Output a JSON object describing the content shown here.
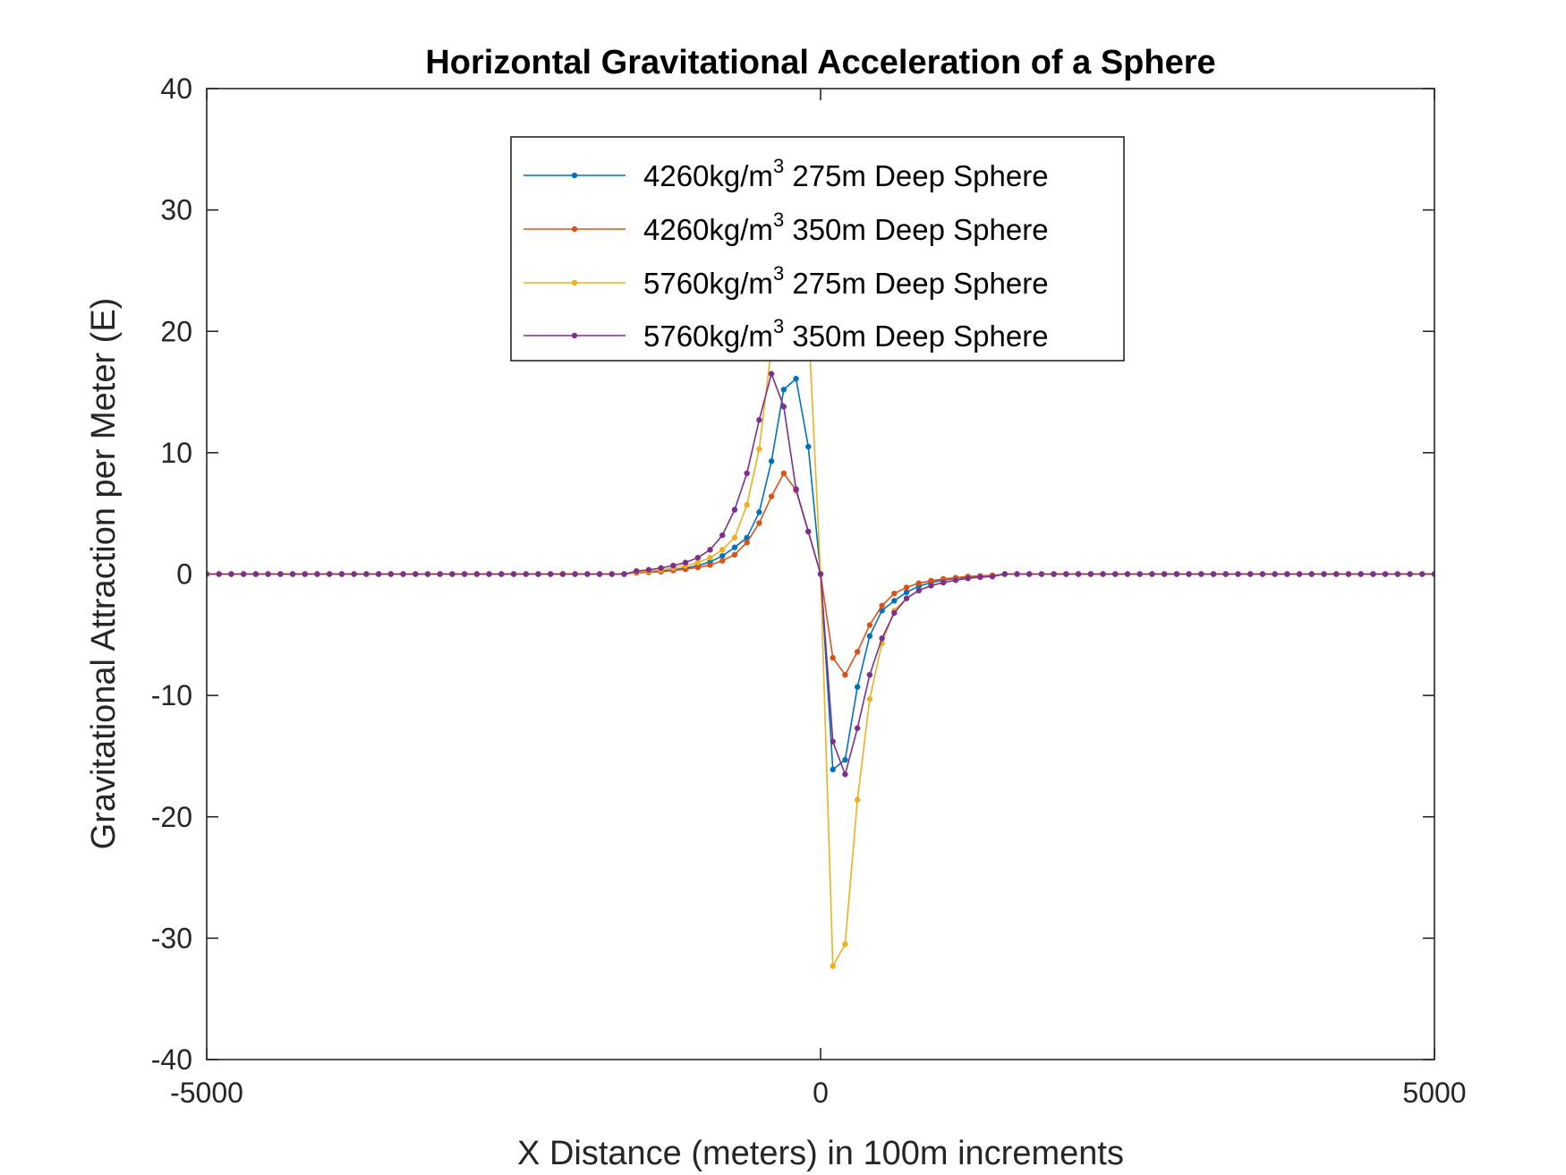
{
  "chart_data": {
    "type": "line",
    "title": "Horizontal Gravitational Acceleration of a Sphere",
    "xlabel": "X Distance (meters) in 100m increments",
    "ylabel": "Gravitational Attraction per Meter (E)",
    "xlim": [
      -5000,
      5000
    ],
    "ylim": [
      -40,
      40
    ],
    "xticks": [
      -5000,
      0,
      5000
    ],
    "xtick_labels": [
      "-5000",
      "0",
      "5000"
    ],
    "yticks": [
      40,
      30,
      20,
      10,
      0,
      -10,
      -20,
      -30,
      -40
    ],
    "ytick_labels": [
      "40",
      "30",
      "20",
      "10",
      "0",
      "-10",
      "-20",
      "-30",
      "-40"
    ],
    "grid": false,
    "legend_position": "top-center",
    "x_range": {
      "start": -5000,
      "stop": 5000,
      "step": 100
    },
    "series": [
      {
        "name_main": "4260kg/m",
        "name_sup": "3",
        "name_rest": " 275m Deep Sphere",
        "color": "#0072BD",
        "points": [
          [
            -1500,
            0.15
          ],
          [
            -1400,
            0.2
          ],
          [
            -1300,
            0.25
          ],
          [
            -1200,
            0.35
          ],
          [
            -1100,
            0.5
          ],
          [
            -1000,
            0.7
          ],
          [
            -900,
            1.0
          ],
          [
            -800,
            1.5
          ],
          [
            -700,
            2.2
          ],
          [
            -600,
            3.0
          ],
          [
            -500,
            5.1
          ],
          [
            -400,
            9.3
          ],
          [
            -300,
            15.2
          ],
          [
            -200,
            16.1
          ],
          [
            -100,
            10.5
          ],
          [
            0,
            0
          ],
          [
            100,
            -16.1
          ],
          [
            200,
            -15.3
          ],
          [
            300,
            -9.3
          ],
          [
            400,
            -5.1
          ],
          [
            500,
            -3.0
          ],
          [
            600,
            -2.2
          ],
          [
            700,
            -1.5
          ],
          [
            800,
            -1.0
          ],
          [
            900,
            -0.7
          ],
          [
            1000,
            -0.5
          ],
          [
            1100,
            -0.35
          ],
          [
            1200,
            -0.25
          ],
          [
            1300,
            -0.2
          ],
          [
            1400,
            -0.15
          ]
        ]
      },
      {
        "name_main": "4260kg/m",
        "name_sup": "3",
        "name_rest": " 350m Deep Sphere",
        "color": "#D95319",
        "points": [
          [
            -1500,
            0.1
          ],
          [
            -1400,
            0.15
          ],
          [
            -1300,
            0.2
          ],
          [
            -1200,
            0.3
          ],
          [
            -1100,
            0.4
          ],
          [
            -1000,
            0.55
          ],
          [
            -900,
            0.75
          ],
          [
            -800,
            1.1
          ],
          [
            -700,
            1.6
          ],
          [
            -600,
            2.6
          ],
          [
            -500,
            4.2
          ],
          [
            -400,
            6.4
          ],
          [
            -300,
            8.3
          ],
          [
            -200,
            6.9
          ],
          [
            -100,
            3.5
          ],
          [
            0,
            0
          ],
          [
            100,
            -6.9
          ],
          [
            200,
            -8.3
          ],
          [
            300,
            -6.4
          ],
          [
            400,
            -4.2
          ],
          [
            500,
            -2.6
          ],
          [
            600,
            -1.6
          ],
          [
            700,
            -1.1
          ],
          [
            800,
            -0.75
          ],
          [
            900,
            -0.55
          ],
          [
            1000,
            -0.4
          ],
          [
            1100,
            -0.3
          ],
          [
            1200,
            -0.2
          ],
          [
            1300,
            -0.15
          ],
          [
            1400,
            -0.1
          ]
        ]
      },
      {
        "name_main": "5760kg/m",
        "name_sup": "3",
        "name_rest": " 275m Deep Sphere",
        "color": "#EDB120",
        "points": [
          [
            -1500,
            0.2
          ],
          [
            -1400,
            0.25
          ],
          [
            -1300,
            0.35
          ],
          [
            -1200,
            0.5
          ],
          [
            -1100,
            0.7
          ],
          [
            -1000,
            0.95
          ],
          [
            -900,
            1.35
          ],
          [
            -800,
            2.0
          ],
          [
            -700,
            3.0
          ],
          [
            -600,
            5.7
          ],
          [
            -500,
            10.3
          ],
          [
            -400,
            18.6
          ],
          [
            -300,
            30.5
          ],
          [
            -200,
            32.3
          ],
          [
            -100,
            21.0
          ],
          [
            0,
            0
          ],
          [
            100,
            -32.3
          ],
          [
            200,
            -30.5
          ],
          [
            300,
            -18.6
          ],
          [
            400,
            -10.3
          ],
          [
            500,
            -5.7
          ],
          [
            600,
            -3.0
          ],
          [
            700,
            -2.0
          ],
          [
            800,
            -1.35
          ],
          [
            900,
            -0.95
          ],
          [
            1000,
            -0.7
          ],
          [
            1100,
            -0.5
          ],
          [
            1200,
            -0.35
          ],
          [
            1300,
            -0.25
          ],
          [
            1400,
            -0.2
          ]
        ]
      },
      {
        "name_main": "5760kg/m",
        "name_sup": "3",
        "name_rest": " 350m Deep Sphere",
        "color": "#7E2F8E",
        "points": [
          [
            -1500,
            0.25
          ],
          [
            -1400,
            0.35
          ],
          [
            -1300,
            0.5
          ],
          [
            -1200,
            0.7
          ],
          [
            -1100,
            0.95
          ],
          [
            -1000,
            1.35
          ],
          [
            -900,
            2.0
          ],
          [
            -800,
            3.2
          ],
          [
            -700,
            5.3
          ],
          [
            -600,
            8.3
          ],
          [
            -500,
            12.7
          ],
          [
            -400,
            16.5
          ],
          [
            -300,
            13.8
          ],
          [
            -200,
            7.0
          ],
          [
            -100,
            3.5
          ],
          [
            0,
            0
          ],
          [
            100,
            -13.8
          ],
          [
            200,
            -16.5
          ],
          [
            300,
            -12.7
          ],
          [
            400,
            -8.3
          ],
          [
            500,
            -5.3
          ],
          [
            600,
            -3.2
          ],
          [
            700,
            -2.0
          ],
          [
            800,
            -1.35
          ],
          [
            900,
            -0.95
          ],
          [
            1000,
            -0.7
          ],
          [
            1100,
            -0.5
          ],
          [
            1200,
            -0.35
          ],
          [
            1300,
            -0.25
          ],
          [
            1400,
            -0.2
          ]
        ]
      }
    ]
  }
}
